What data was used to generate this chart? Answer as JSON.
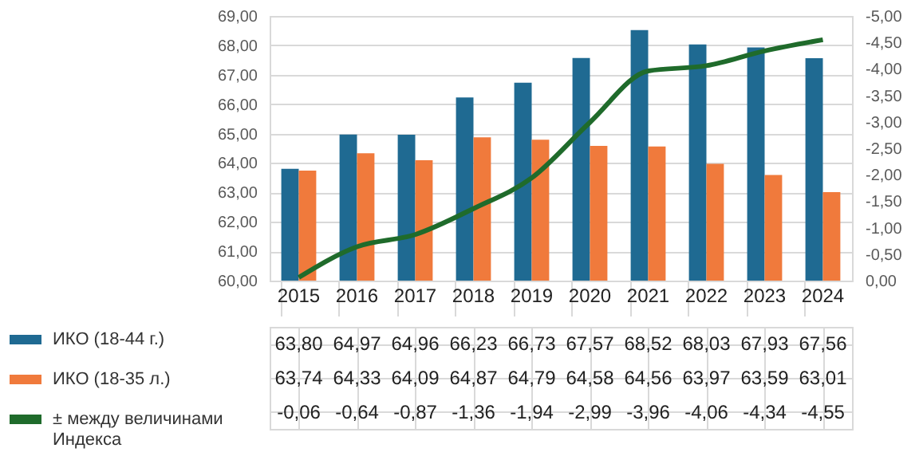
{
  "chart_data": {
    "type": "bar",
    "categories": [
      "2015",
      "2016",
      "2017",
      "2018",
      "2019",
      "2020",
      "2021",
      "2022",
      "2023",
      "2024"
    ],
    "series": [
      {
        "name": "ИКО (18-44 г.)",
        "color": "#1f6a92",
        "values": [
          63.8,
          64.97,
          64.96,
          66.23,
          66.73,
          67.57,
          68.52,
          68.03,
          67.93,
          67.56
        ],
        "value_labels": [
          "63,80",
          "64,97",
          "64,96",
          "66,23",
          "66,73",
          "67,57",
          "68,52",
          "68,03",
          "67,93",
          "67,56"
        ]
      },
      {
        "name": "ИКО (18-35 л.)",
        "color": "#f07a3c",
        "values": [
          63.74,
          64.33,
          64.09,
          64.87,
          64.79,
          64.58,
          64.56,
          63.97,
          63.59,
          63.01
        ],
        "value_labels": [
          "63,74",
          "64,33",
          "64,09",
          "64,87",
          "64,79",
          "64,58",
          "64,56",
          "63,97",
          "63,59",
          "63,01"
        ]
      },
      {
        "name": "± между величинами Индекса",
        "type": "line",
        "axis": "y2",
        "color": "#1f6b2b",
        "values": [
          -0.06,
          -0.64,
          -0.87,
          -1.36,
          -1.94,
          -2.99,
          -3.96,
          -4.06,
          -4.34,
          -4.55
        ],
        "value_labels": [
          "-0,06",
          "-0,64",
          "-0,87",
          "-1,36",
          "-1,94",
          "-2,99",
          "-3,96",
          "-4,06",
          "-4,34",
          "-4,55"
        ]
      }
    ],
    "ylim": [
      60,
      69
    ],
    "yticks": [
      {
        "value": 60,
        "label": "60,00"
      },
      {
        "value": 61,
        "label": "61,00"
      },
      {
        "value": 62,
        "label": "62,00"
      },
      {
        "value": 63,
        "label": "63,00"
      },
      {
        "value": 64,
        "label": "64,00"
      },
      {
        "value": 65,
        "label": "65,00"
      },
      {
        "value": 66,
        "label": "66,00"
      },
      {
        "value": 67,
        "label": "67,00"
      },
      {
        "value": 68,
        "label": "68,00"
      },
      {
        "value": 69,
        "label": "69,00"
      }
    ],
    "y2lim": [
      0,
      -5
    ],
    "y2ticks": [
      {
        "value": 0,
        "label": "0,00"
      },
      {
        "value": -0.5,
        "label": "-0,50"
      },
      {
        "value": -1,
        "label": "-1,00"
      },
      {
        "value": -1.5,
        "label": "-1,50"
      },
      {
        "value": -2,
        "label": "-2,00"
      },
      {
        "value": -2.5,
        "label": "-2,50"
      },
      {
        "value": -3,
        "label": "-3,00"
      },
      {
        "value": -3.5,
        "label": "-3,50"
      },
      {
        "value": -4,
        "label": "-4,00"
      },
      {
        "value": -4.5,
        "label": "-4,50"
      },
      {
        "value": -5,
        "label": "-5,00"
      }
    ],
    "grid": "y",
    "legend": "bottom left"
  }
}
